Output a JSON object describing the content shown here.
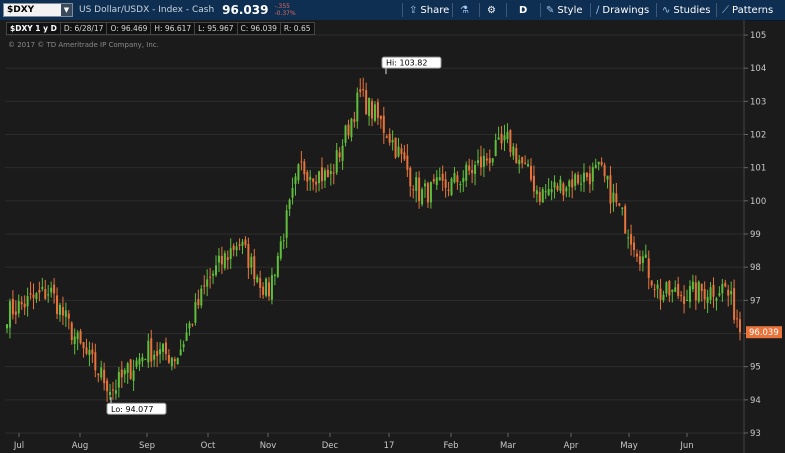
{
  "toolbar": {
    "symbol": "$DXY",
    "instrument_name": "US Dollar/USDX - Index - Cash",
    "last_price": "96.039",
    "net_change": "-.355",
    "net_change_pct": "-0.37%",
    "share_label": "Share",
    "aggregation_label": "D",
    "style_label": "Style",
    "drawings_label": "Drawings",
    "studies_label": "Studies",
    "patterns_label": "Patterns"
  },
  "stats": {
    "title": "$DXY 1 y D",
    "date": "D: 6/28/17",
    "open": "O: 96.469",
    "high": "H: 96.617",
    "low": "L: 95.967",
    "close": "C: 96.039",
    "range": "R: 0.65"
  },
  "copyright": "© 2017 © TD Ameritrade IP Company, Inc.",
  "colors": {
    "up": "#5fbf3c",
    "down": "#e8743c",
    "background": "#1b1b1b",
    "grid": "#2c2c2c",
    "toolbar": "#0f2f52",
    "price_tag": "#e8743c"
  },
  "chart_data": {
    "type": "candlestick",
    "ylim": [
      93,
      105
    ],
    "y_ticks": [
      93,
      94,
      95,
      96,
      97,
      98,
      99,
      100,
      101,
      102,
      103,
      104,
      105
    ],
    "x_ticks": [
      "Jul",
      "Aug",
      "Sep",
      "Oct",
      "Nov",
      "Dec",
      "17",
      "Feb",
      "Mar",
      "Apr",
      "May",
      "Jun"
    ],
    "grid": true,
    "high_annotation": {
      "label": "Hi: 103.82",
      "value": 103.82
    },
    "low_annotation": {
      "label": "Lo: 94.077",
      "value": 94.077
    },
    "last_price": {
      "label": "96.039",
      "value": 96.039
    },
    "series_close": [
      {
        "month": "Jul",
        "close": 96.6
      },
      {
        "month": "mid-Jul",
        "close": 97.3
      },
      {
        "month": "Aug",
        "close": 95.6
      },
      {
        "month": "mid-Aug",
        "close": 94.3
      },
      {
        "month": "Sep",
        "close": 95.5
      },
      {
        "month": "mid-Sep",
        "close": 95.3
      },
      {
        "month": "Oct",
        "close": 97.6
      },
      {
        "month": "mid-Oct",
        "close": 98.8
      },
      {
        "month": "Nov",
        "close": 97.2
      },
      {
        "month": "mid-Nov",
        "close": 101.0
      },
      {
        "month": "Dec",
        "close": 100.7
      },
      {
        "month": "mid-Dec",
        "close": 103.2
      },
      {
        "month": "17",
        "close": 102.0
      },
      {
        "month": "mid-Jan",
        "close": 100.2
      },
      {
        "month": "Feb",
        "close": 100.5
      },
      {
        "month": "mid-Feb",
        "close": 101.1
      },
      {
        "month": "Mar",
        "close": 101.8
      },
      {
        "month": "mid-Mar",
        "close": 100.2
      },
      {
        "month": "Apr",
        "close": 100.6
      },
      {
        "month": "mid-Apr",
        "close": 100.9
      },
      {
        "month": "May",
        "close": 99.1
      },
      {
        "month": "mid-May",
        "close": 97.2
      },
      {
        "month": "Jun",
        "close": 97.2
      },
      {
        "month": "late-Jun",
        "close": 97.4
      },
      {
        "month": "end",
        "close": 96.039
      }
    ]
  }
}
